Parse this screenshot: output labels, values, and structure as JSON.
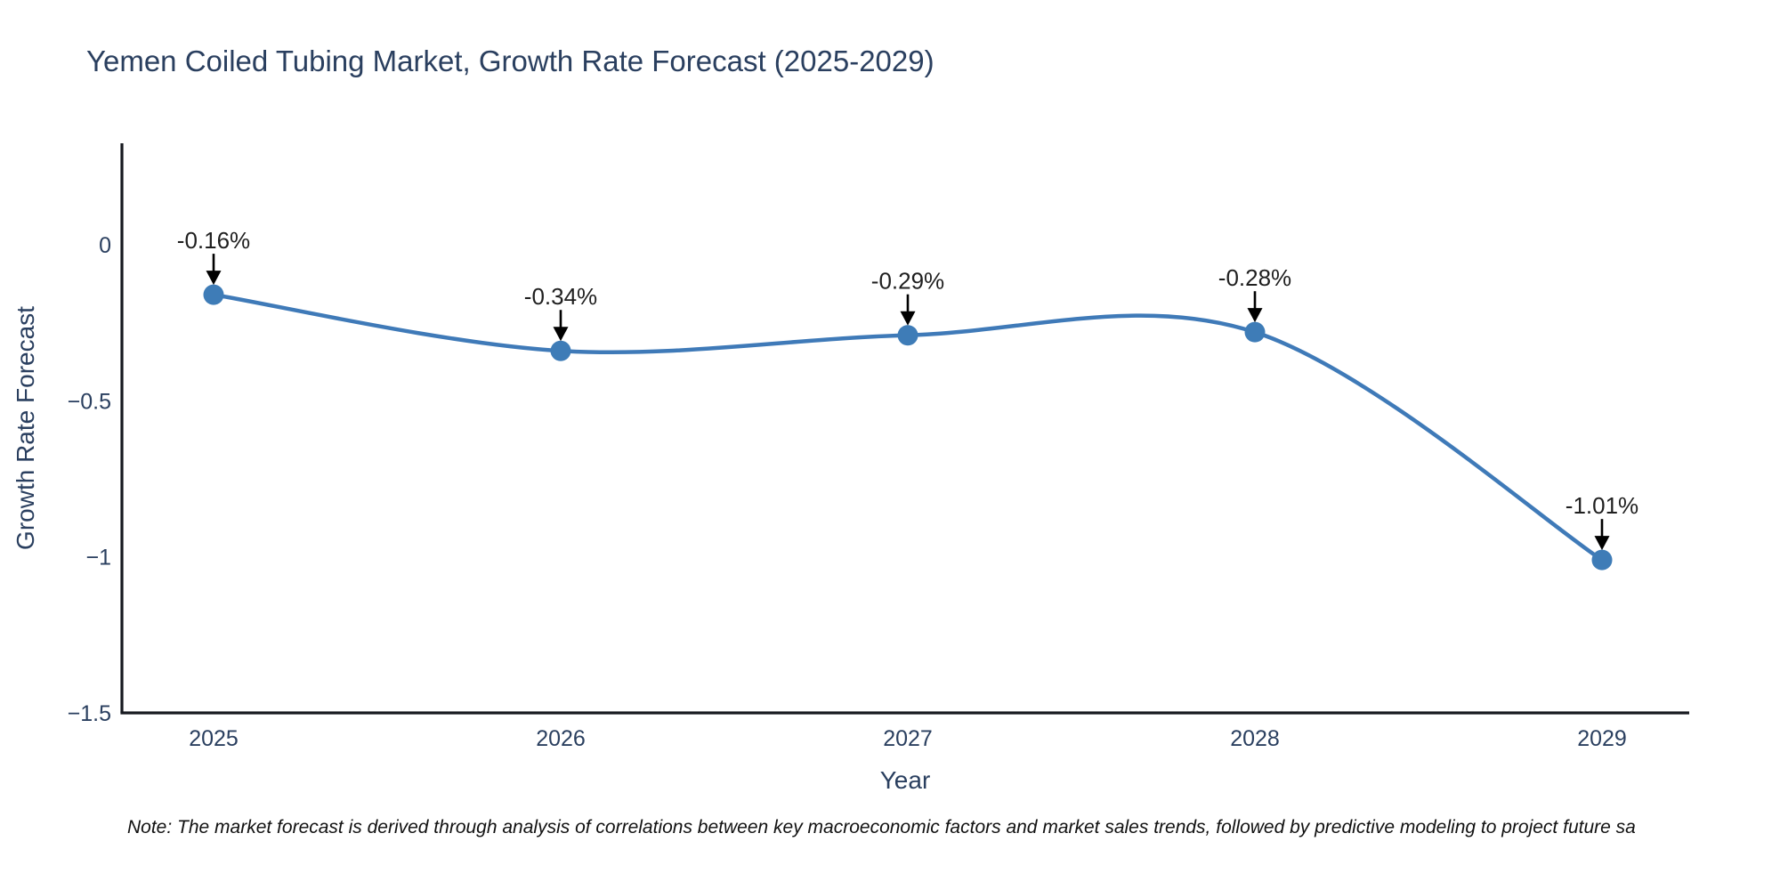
{
  "chart": {
    "title": "Yemen Coiled Tubing Market, Growth Rate Forecast (2025-2029)"
  },
  "chart_data": {
    "type": "line",
    "title": "Yemen Coiled Tubing Market, Growth Rate Forecast (2025-2029)",
    "x": [
      2025,
      2026,
      2027,
      2028,
      2029
    ],
    "xtick_labels": [
      "2025",
      "2026",
      "2027",
      "2028",
      "2029"
    ],
    "y": [
      -0.16,
      -0.34,
      -0.29,
      -0.28,
      -1.01
    ],
    "point_labels": [
      "-0.16%",
      "-0.34%",
      "-0.29%",
      "-0.28%",
      "-1.01%"
    ],
    "xlabel": "Year",
    "ylabel": "Growth Rate Forecast",
    "ylim": [
      -1.5,
      0.325
    ],
    "yticks": {
      "values": [
        0,
        -0.5,
        -1,
        -1.5
      ],
      "labels": [
        "0",
        "−0.5",
        "−1",
        "−1.5"
      ]
    },
    "line_shape": "spline",
    "grid": false,
    "legend": "none",
    "colors": {
      "line": "#3f7ab8",
      "marker": "#3e7cb7",
      "axis": "#16191f",
      "tick_text": "#2a3f5f",
      "annotation_text": "#1f1f1f",
      "arrow": "#000000"
    }
  },
  "note": "Note: The market forecast is derived through analysis of correlations between key macroeconomic factors and market sales trends, followed by predictive modeling to project future sa"
}
